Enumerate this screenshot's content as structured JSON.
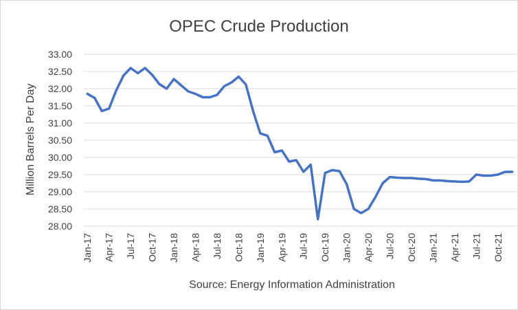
{
  "chart_data": {
    "type": "line",
    "title": "OPEC Crude Production",
    "xlabel": "Source: Energy Information Administration",
    "ylabel": "Million Barrels Per Day",
    "ylim": [
      28.0,
      33.0
    ],
    "yticks": [
      "28.00",
      "28.50",
      "29.00",
      "29.50",
      "30.00",
      "30.50",
      "31.00",
      "31.50",
      "32.00",
      "32.50",
      "33.00"
    ],
    "xtick_labels": [
      "Jan-17",
      "Apr-17",
      "Jul-17",
      "Oct-17",
      "Jan-18",
      "Apr-18",
      "Jul-18",
      "Oct-18",
      "Jan-19",
      "Apr-19",
      "Jul-19",
      "Oct-19",
      "Jan-20",
      "Apr-20",
      "Jul-20",
      "Oct-20",
      "Jan-21",
      "Apr-21",
      "Jul-21",
      "Oct-21"
    ],
    "grid": true,
    "legend": "none",
    "color": "#4472c4",
    "series": [
      {
        "x": [
          "Jan-17",
          "Feb-17",
          "Mar-17",
          "Apr-17",
          "May-17",
          "Jun-17",
          "Jul-17",
          "Aug-17",
          "Sep-17",
          "Oct-17",
          "Nov-17",
          "Dec-17",
          "Jan-18",
          "Feb-18",
          "Mar-18",
          "Apr-18",
          "May-18",
          "Jun-18",
          "Jul-18",
          "Aug-18",
          "Sep-18",
          "Oct-18",
          "Nov-18",
          "Dec-18",
          "Jan-19",
          "Feb-19",
          "Mar-19",
          "Apr-19",
          "May-19",
          "Jun-19",
          "Jul-19",
          "Aug-19",
          "Sep-19",
          "Oct-19",
          "Nov-19",
          "Dec-19",
          "Jan-20",
          "Feb-20",
          "Mar-20",
          "Apr-20",
          "May-20",
          "Jun-20",
          "Jul-20",
          "Aug-20",
          "Sep-20",
          "Oct-20",
          "Nov-20",
          "Dec-20",
          "Jan-21",
          "Feb-21",
          "Mar-21",
          "Apr-21",
          "May-21",
          "Jun-21",
          "Jul-21",
          "Aug-21",
          "Sep-21",
          "Oct-21",
          "Nov-21",
          "Dec-21"
        ],
        "values": [
          31.85,
          31.73,
          31.35,
          31.42,
          31.95,
          32.38,
          32.6,
          32.45,
          32.6,
          32.4,
          32.13,
          32.0,
          32.28,
          32.1,
          31.92,
          31.85,
          31.75,
          31.75,
          31.82,
          32.07,
          32.18,
          32.35,
          32.12,
          31.35,
          30.7,
          30.63,
          30.15,
          30.2,
          29.88,
          29.92,
          29.58,
          29.79,
          28.2,
          29.55,
          29.63,
          29.6,
          29.22,
          28.5,
          28.38,
          28.5,
          28.85,
          29.25,
          29.43,
          29.41,
          29.4,
          29.4,
          29.38,
          29.37,
          29.33,
          29.33,
          29.31,
          29.3,
          29.29,
          29.3,
          29.5,
          29.47,
          29.47,
          29.5,
          29.58,
          29.58
        ]
      }
    ]
  }
}
